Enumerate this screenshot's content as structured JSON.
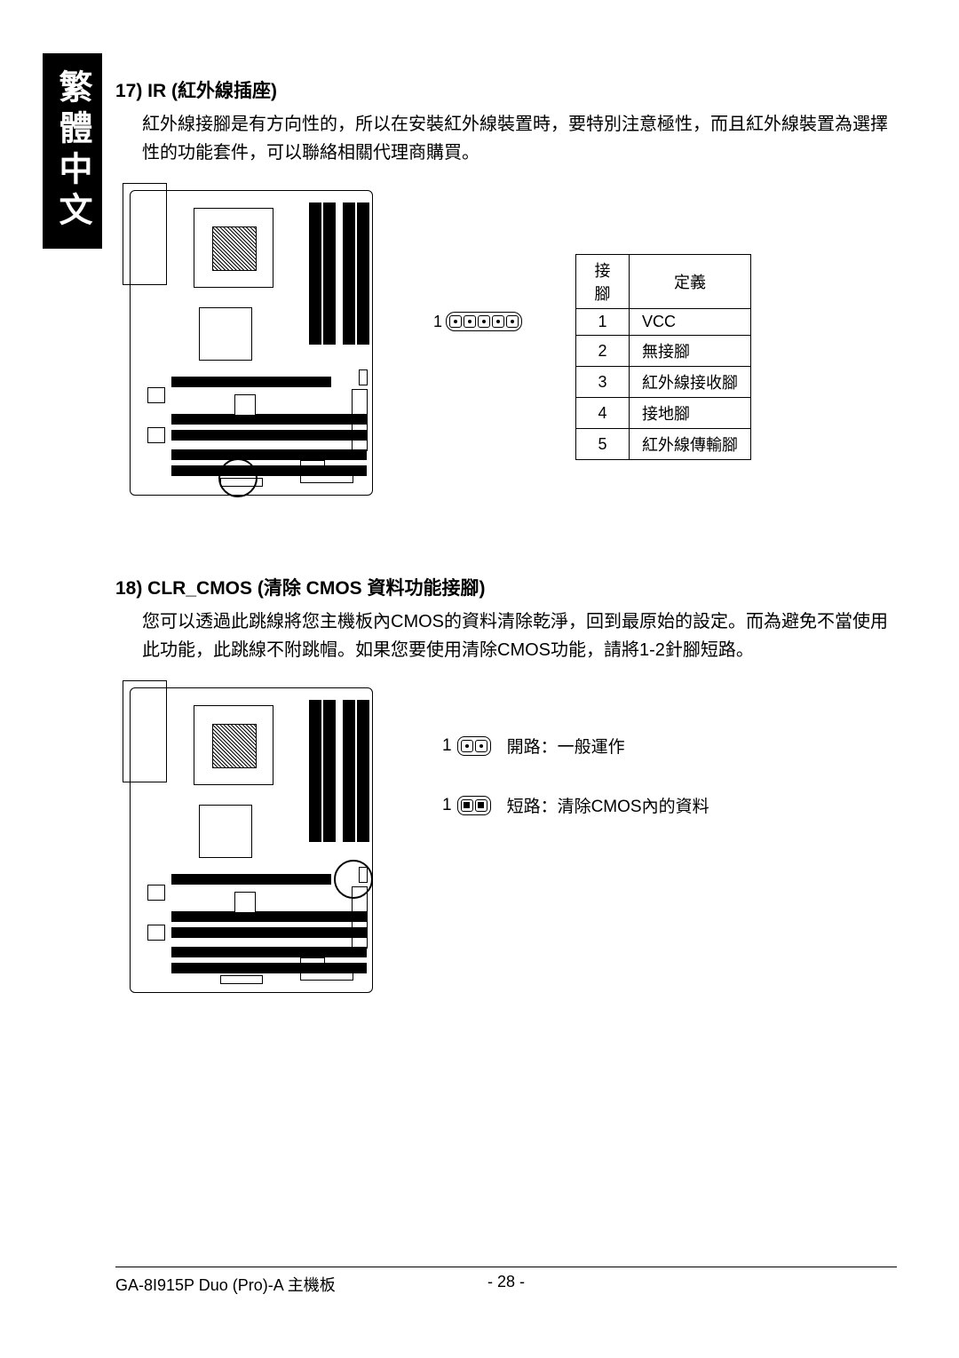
{
  "side_label": "繁體中文",
  "section17": {
    "title": "17) IR (紅外線插座)",
    "body": "紅外線接腳是有方向性的，所以在安裝紅外線裝置時，要特別注意極性，而且紅外線裝置為選擇性的功能套件，可以聯絡相關代理商購買。",
    "pin_label": "1",
    "table": {
      "headers": [
        "接腳",
        "定義"
      ],
      "rows": [
        [
          "1",
          "VCC"
        ],
        [
          "2",
          "無接腳"
        ],
        [
          "3",
          "紅外線接收腳"
        ],
        [
          "4",
          "接地腳"
        ],
        [
          "5",
          "紅外線傳輸腳"
        ]
      ]
    }
  },
  "section18": {
    "title": "18) CLR_CMOS (清除 CMOS 資料功能接腳)",
    "body": "您可以透過此跳線將您主機板內CMOS的資料清除乾淨，回到最原始的設定。而為避免不當使用此功能，此跳線不附跳帽。如果您要使用清除CMOS功能，請將1-2針腳短路。",
    "jumper_open": {
      "pin": "1",
      "label": "開路：一般運作"
    },
    "jumper_short": {
      "pin": "1",
      "label": "短路：清除CMOS內的資料"
    }
  },
  "footer": {
    "model": "GA-8I915P Duo (Pro)-A 主機板",
    "page": "- 28 -"
  }
}
